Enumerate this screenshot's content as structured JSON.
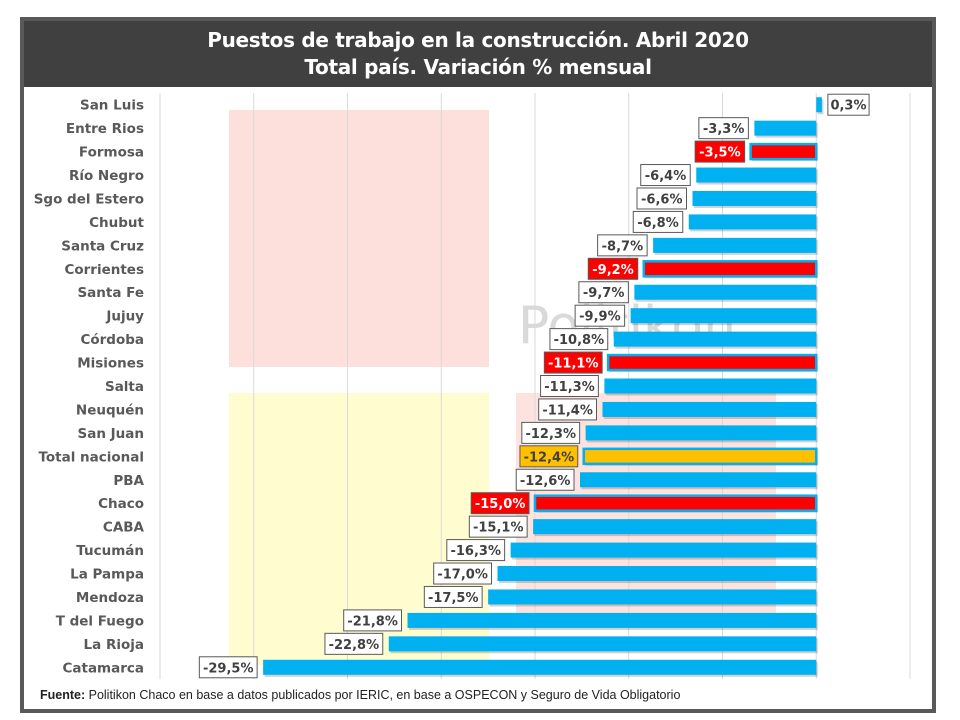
{
  "title": {
    "line1": "Puestos de trabajo en la construcción. Abril 2020",
    "line2": "Total país. Variación % mensual"
  },
  "footer": {
    "label": "Fuente:",
    "text": " Politikon Chaco en base a datos publicados por IERIC, en base a OSPECON y Seguro de Vida Obligatorio"
  },
  "watermark": "Politikon",
  "colors": {
    "default_bar": "#00B0F0",
    "highlight_bar": "#FF0000",
    "total_bar": "#FFC000",
    "bar_outline": "#00B0F0",
    "label_border": "#595959",
    "title_bg": "#404040",
    "frame": "#595959",
    "grid": "#d9d9d9"
  },
  "chart_data": {
    "type": "bar",
    "orientation": "horizontal",
    "title": "Puestos de trabajo en la construcción. Abril 2020 — Total país. Variación % mensual",
    "xlabel": "",
    "ylabel": "",
    "xlim": [
      -35,
      5
    ],
    "grid_step": 5,
    "grid": true,
    "unit": "%",
    "categories": [
      "San Luis",
      "Entre Rios",
      "Formosa",
      "Río Negro",
      "Sgo del Estero",
      "Chubut",
      "Santa Cruz",
      "Corrientes",
      "Santa Fe",
      "Jujuy",
      "Córdoba",
      "Misiones",
      "Salta",
      "Neuquén",
      "San Juan",
      "Total nacional",
      "PBA",
      "Chaco",
      "CABA",
      "Tucumán",
      "La Pampa",
      "Mendoza",
      "T del Fuego",
      "La Rioja",
      "Catamarca"
    ],
    "values": [
      0.3,
      -3.3,
      -3.5,
      -6.4,
      -6.6,
      -6.8,
      -8.7,
      -9.2,
      -9.7,
      -9.9,
      -10.8,
      -11.1,
      -11.3,
      -11.4,
      -12.3,
      -12.4,
      -12.6,
      -15.0,
      -15.1,
      -16.3,
      -17.0,
      -17.5,
      -21.8,
      -22.8,
      -29.5
    ],
    "labels": [
      "0,3%",
      "-3,3%",
      "-3,5%",
      "-6,4%",
      "-6,6%",
      "-6,8%",
      "-8,7%",
      "-9,2%",
      "-9,7%",
      "-9,9%",
      "-10,8%",
      "-11,1%",
      "-11,3%",
      "-11,4%",
      "-12,3%",
      "-12,4%",
      "-12,6%",
      "-15,0%",
      "-15,1%",
      "-16,3%",
      "-17,0%",
      "-17,5%",
      "-21,8%",
      "-22,8%",
      "-29,5%"
    ],
    "highlight": [
      "normal",
      "normal",
      "red",
      "normal",
      "normal",
      "normal",
      "normal",
      "red",
      "normal",
      "normal",
      "normal",
      "red",
      "normal",
      "normal",
      "normal",
      "total",
      "normal",
      "red",
      "normal",
      "normal",
      "normal",
      "normal",
      "normal",
      "normal",
      "normal"
    ],
    "legend": "none"
  }
}
